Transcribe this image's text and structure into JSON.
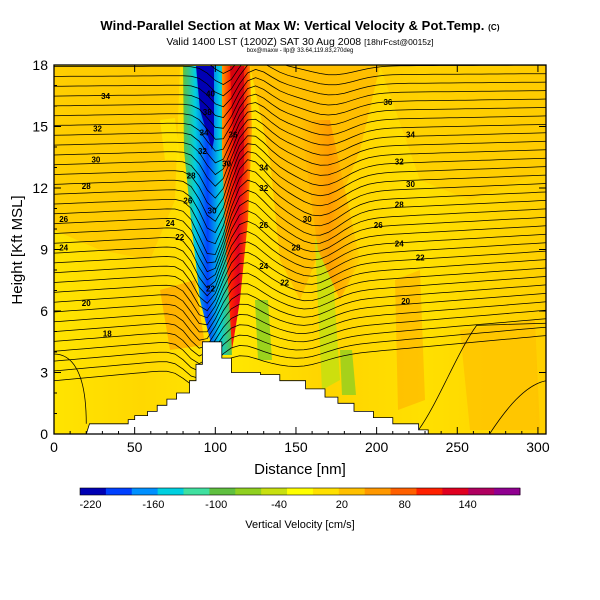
{
  "titles": {
    "main": "Wind-Parallel Section at Max W: Vertical Velocity & Pot.Temp.",
    "main_mark": "(C)",
    "valid": "Valid 1400 LST (1200Z) SAT 30 Aug 2008",
    "valid_src": "[18hrFcst@0015z]",
    "sub": "box@maxw - llp@ 33.64,119.83,270deg"
  },
  "chart_data": {
    "type": "heatmap",
    "xlabel": "Distance [nm]",
    "ylabel": "Height [Kft MSL]",
    "xlim": [
      0,
      305
    ],
    "ylim": [
      0,
      18
    ],
    "xticks": [
      0,
      50,
      100,
      150,
      200,
      250,
      300
    ],
    "yticks": [
      0,
      3,
      6,
      9,
      12,
      15,
      18
    ],
    "colorbar": {
      "label": "Vertical Velocity [cm/s]",
      "ticks": [
        -220,
        -160,
        -100,
        -40,
        20,
        80,
        140
      ],
      "range": [
        -230,
        190
      ],
      "colors": [
        "#0000b4",
        "#0040ff",
        "#0090ff",
        "#00d0e0",
        "#40e0a0",
        "#60c040",
        "#90d020",
        "#c8e010",
        "#ffff00",
        "#ffe000",
        "#ffc000",
        "#ff9800",
        "#ff6000",
        "#ff2000",
        "#e00020",
        "#b00060",
        "#900090"
      ]
    },
    "shaded_features": [
      {
        "name": "downdraft core",
        "x_range": [
          90,
          105
        ],
        "y_range": [
          5,
          18
        ],
        "min_value": -220
      },
      {
        "name": "updraft core",
        "x_range": [
          105,
          120
        ],
        "y_range": [
          6,
          18
        ],
        "max_value": 140
      },
      {
        "name": "secondary updraft",
        "x_range": [
          150,
          175
        ],
        "y_range": [
          8,
          15
        ],
        "max_value": 60
      }
    ],
    "terrain": {
      "x": [
        20,
        22,
        46,
        46,
        50,
        50,
        58,
        58,
        64,
        64,
        70,
        70,
        76,
        76,
        84,
        84,
        88,
        88,
        92,
        92,
        104,
        104,
        110,
        110,
        128,
        128,
        140,
        140,
        156,
        156,
        168,
        168,
        176,
        176,
        186,
        186,
        198,
        198,
        210,
        210,
        226,
        226,
        232,
        232,
        305
      ],
      "y": [
        0,
        0.5,
        0.5,
        0.7,
        0.7,
        0.9,
        0.9,
        1.1,
        1.1,
        1.4,
        1.4,
        1.7,
        1.7,
        2.0,
        2.0,
        2.6,
        2.6,
        3.4,
        3.4,
        4.5,
        4.5,
        3.7,
        3.7,
        3.0,
        3.0,
        2.9,
        2.9,
        2.6,
        2.6,
        2.2,
        2.2,
        1.8,
        1.8,
        1.5,
        1.5,
        1.1,
        1.1,
        0.8,
        0.8,
        0.5,
        0.5,
        0.2,
        0.2,
        0,
        0
      ]
    },
    "contour_interval": 1,
    "isentrope_labels": [
      {
        "x": 32,
        "y": 16.5,
        "label": "34"
      },
      {
        "x": 27,
        "y": 14.9,
        "label": "32"
      },
      {
        "x": 26,
        "y": 13.4,
        "label": "30"
      },
      {
        "x": 20,
        "y": 12.1,
        "label": "28"
      },
      {
        "x": 6,
        "y": 10.5,
        "label": "26"
      },
      {
        "x": 6,
        "y": 9.1,
        "label": "24"
      },
      {
        "x": 20,
        "y": 6.4,
        "label": "20"
      },
      {
        "x": 33,
        "y": 4.9,
        "label": "18"
      },
      {
        "x": 97,
        "y": 16.6,
        "label": "40"
      },
      {
        "x": 95,
        "y": 15.7,
        "label": "38"
      },
      {
        "x": 93,
        "y": 14.7,
        "label": "34"
      },
      {
        "x": 92,
        "y": 13.8,
        "label": "32"
      },
      {
        "x": 85,
        "y": 12.6,
        "label": "28"
      },
      {
        "x": 83,
        "y": 11.4,
        "label": "26"
      },
      {
        "x": 72,
        "y": 10.3,
        "label": "24"
      },
      {
        "x": 78,
        "y": 9.6,
        "label": "22"
      },
      {
        "x": 98,
        "y": 10.9,
        "label": "30"
      },
      {
        "x": 97,
        "y": 7.1,
        "label": "22"
      },
      {
        "x": 107,
        "y": 13.2,
        "label": "30"
      },
      {
        "x": 111,
        "y": 14.6,
        "label": "36"
      },
      {
        "x": 130,
        "y": 13.0,
        "label": "34"
      },
      {
        "x": 130,
        "y": 12.0,
        "label": "32"
      },
      {
        "x": 130,
        "y": 10.2,
        "label": "26"
      },
      {
        "x": 130,
        "y": 8.2,
        "label": "24"
      },
      {
        "x": 143,
        "y": 7.4,
        "label": "22"
      },
      {
        "x": 150,
        "y": 9.1,
        "label": "28"
      },
      {
        "x": 157,
        "y": 10.5,
        "label": "30"
      },
      {
        "x": 207,
        "y": 16.2,
        "label": "36"
      },
      {
        "x": 221,
        "y": 14.6,
        "label": "34"
      },
      {
        "x": 214,
        "y": 13.3,
        "label": "32"
      },
      {
        "x": 221,
        "y": 12.2,
        "label": "30"
      },
      {
        "x": 214,
        "y": 11.2,
        "label": "28"
      },
      {
        "x": 201,
        "y": 10.2,
        "label": "26"
      },
      {
        "x": 214,
        "y": 9.3,
        "label": "24"
      },
      {
        "x": 227,
        "y": 8.6,
        "label": "22"
      },
      {
        "x": 218,
        "y": 6.5,
        "label": "20"
      }
    ]
  }
}
